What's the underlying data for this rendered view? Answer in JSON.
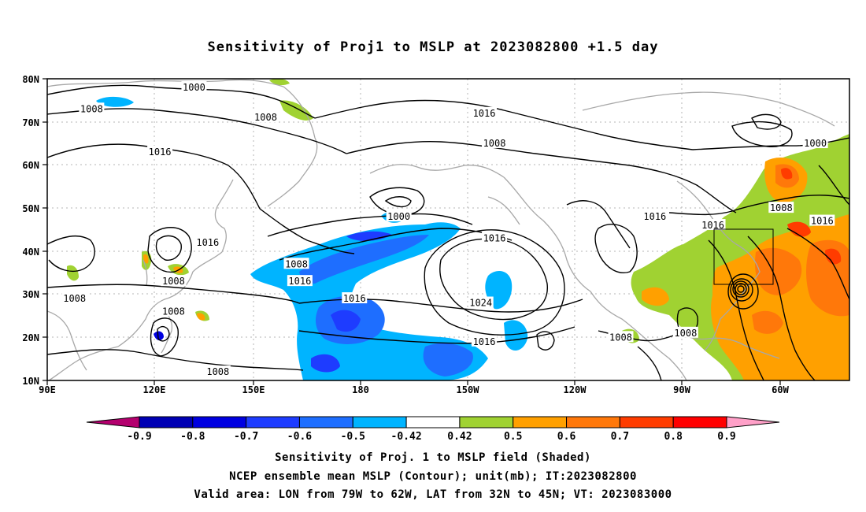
{
  "title": "Sensitivity of Proj1 to MSLP at 2023082800 +1.5 day",
  "map": {
    "lat_labels": [
      "80N",
      "70N",
      "60N",
      "50N",
      "40N",
      "30N",
      "20N",
      "10N"
    ],
    "lon_labels": [
      "90E",
      "120E",
      "150E",
      "180",
      "150W",
      "120W",
      "90W",
      "60W"
    ],
    "valid_box_label": "Valid area: LON from 79W to 62W, LAT from 32N to 45N",
    "contour_labels": [
      {
        "text": "1000",
        "lon": 133,
        "lat": 78
      },
      {
        "text": "1008",
        "lon": 103,
        "lat": 73
      },
      {
        "text": "1008",
        "lon": 154,
        "lat": 71
      },
      {
        "text": "1016",
        "lon": 218,
        "lat": 72
      },
      {
        "text": "1008",
        "lon": 221,
        "lat": 65
      },
      {
        "text": "1000",
        "lon": 315,
        "lat": 65
      },
      {
        "text": "1016",
        "lon": 123,
        "lat": 63
      },
      {
        "text": "1008",
        "lon": 305,
        "lat": 50
      },
      {
        "text": "1016",
        "lon": 317,
        "lat": 47
      },
      {
        "text": "1016",
        "lon": 268,
        "lat": 48
      },
      {
        "text": "1016",
        "lon": 285,
        "lat": 46
      },
      {
        "text": "1000",
        "lon": 193,
        "lat": 48
      },
      {
        "text": "1016",
        "lon": 221,
        "lat": 43
      },
      {
        "text": "1016",
        "lon": 137,
        "lat": 42
      },
      {
        "text": "1008",
        "lon": 163,
        "lat": 37
      },
      {
        "text": "1016",
        "lon": 164,
        "lat": 33
      },
      {
        "text": "1008",
        "lon": 127,
        "lat": 33
      },
      {
        "text": "1008",
        "lon": 98,
        "lat": 29
      },
      {
        "text": "1016",
        "lon": 180,
        "lat": 29
      },
      {
        "text": "1024",
        "lon": 217,
        "lat": 28
      },
      {
        "text": "1008",
        "lon": 127,
        "lat": 26
      },
      {
        "text": "1008",
        "lon": 258,
        "lat": 20
      },
      {
        "text": "1008",
        "lon": 277,
        "lat": 21
      },
      {
        "text": "1016",
        "lon": 218,
        "lat": 19
      },
      {
        "text": "1008",
        "lon": 140,
        "lat": 12
      }
    ]
  },
  "colorbar": {
    "levels": [
      "-0.9",
      "-0.8",
      "-0.7",
      "-0.6",
      "-0.5",
      "-0.42",
      "0.42",
      "0.5",
      "0.6",
      "0.7",
      "0.8",
      "0.9"
    ],
    "colors": [
      "#b4006e",
      "#0000b4",
      "#0000e1",
      "#1e3cff",
      "#1e6eff",
      "#00b4ff",
      "#ffffff",
      "#a0d232",
      "#ffa000",
      "#ff780a",
      "#ff3c00",
      "#ff0000",
      "#ffa0c8"
    ]
  },
  "caption": {
    "line1": "Sensitivity of Proj. 1 to MSLP field (Shaded)",
    "line2": "NCEP ensemble mean MSLP (Contour); unit(mb); IT:2023082800",
    "line3": "Valid area: LON from 79W to 62W, LAT from 32N to 45N; VT: 2023083000"
  }
}
